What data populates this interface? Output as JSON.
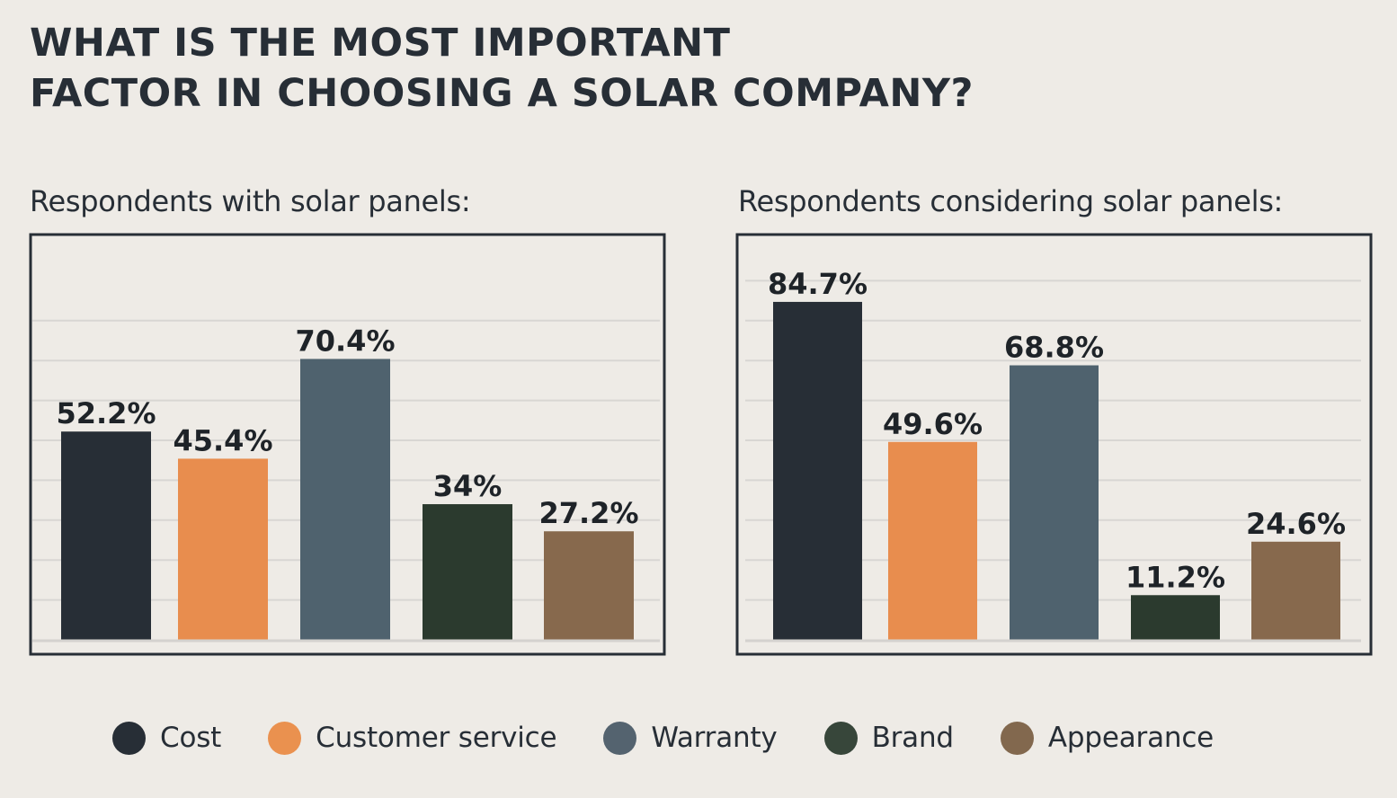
{
  "title_lines": [
    "WHAT IS THE MOST IMPORTANT",
    "FACTOR IN CHOOSING A SOLAR COMPANY?"
  ],
  "colors": {
    "background": "#eeebe6",
    "text": "#272e36",
    "frame": "#272e36",
    "grid": "#d8d6d3",
    "Cost": "#272e36",
    "Customer service": "#e88d4e",
    "Warranty": "#4f626e",
    "Brand": "#2b3a2e",
    "Appearance": "#87694d"
  },
  "legend": [
    {
      "label": "Cost",
      "color": "#272e36"
    },
    {
      "label": "Customer service",
      "color": "#ea914f"
    },
    {
      "label": "Warranty",
      "color": "#54636f"
    },
    {
      "label": "Brand",
      "color": "#37463a"
    },
    {
      "label": "Appearance",
      "color": "#82684e"
    }
  ],
  "chart_data": [
    {
      "type": "bar",
      "title": "Respondents with solar panels:",
      "categories": [
        "Cost",
        "Customer service",
        "Warranty",
        "Brand",
        "Appearance"
      ],
      "values": [
        52.2,
        45.4,
        70.4,
        34,
        27.2
      ],
      "labels": [
        "52.2%",
        "45.4%",
        "70.4%",
        "34%",
        "27.2%"
      ],
      "xlabel": "",
      "ylabel": "",
      "ylim": [
        0,
        100
      ],
      "gridlines": [
        10,
        20,
        30,
        40,
        50,
        60,
        70,
        80
      ],
      "grid": true
    },
    {
      "type": "bar",
      "title": "Respondents considering solar panels:",
      "categories": [
        "Cost",
        "Customer service",
        "Warranty",
        "Brand",
        "Appearance"
      ],
      "values": [
        84.7,
        49.6,
        68.8,
        11.2,
        24.6
      ],
      "labels": [
        "84.7%",
        "49.6%",
        "68.8%",
        "11.2%",
        "24.6%"
      ],
      "xlabel": "",
      "ylabel": "",
      "ylim": [
        0,
        100
      ],
      "gridlines": [
        10,
        20,
        30,
        40,
        50,
        60,
        70,
        80,
        90
      ],
      "grid": true
    }
  ]
}
